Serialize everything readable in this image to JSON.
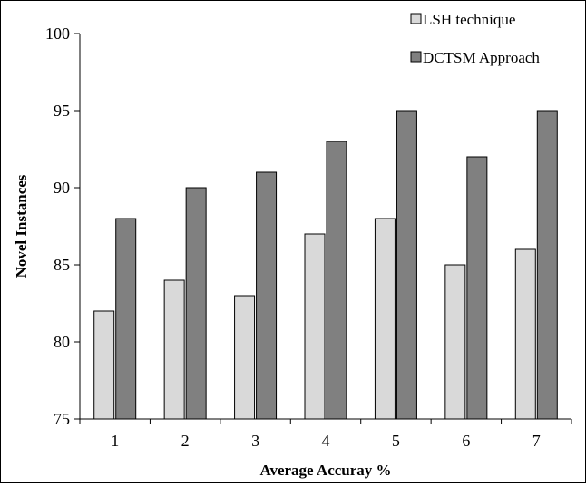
{
  "chart_data": {
    "type": "bar",
    "xlabel": "Average Accuray %",
    "ylabel": "Novel Instances",
    "categories": [
      "1",
      "2",
      "3",
      "4",
      "5",
      "6",
      "7"
    ],
    "ylim": [
      75,
      100
    ],
    "yticks": [
      "75",
      "80",
      "85",
      "90",
      "95",
      "100"
    ],
    "grid": false,
    "legend_position": "top-right",
    "series": [
      {
        "name": "LSH technique",
        "values": [
          82,
          84,
          83,
          87,
          88,
          85,
          86
        ],
        "color": "#d9d9d9"
      },
      {
        "name": "DCTSM Approach",
        "values": [
          88,
          90,
          91,
          93,
          95,
          92,
          95
        ],
        "color": "#808080"
      }
    ]
  }
}
